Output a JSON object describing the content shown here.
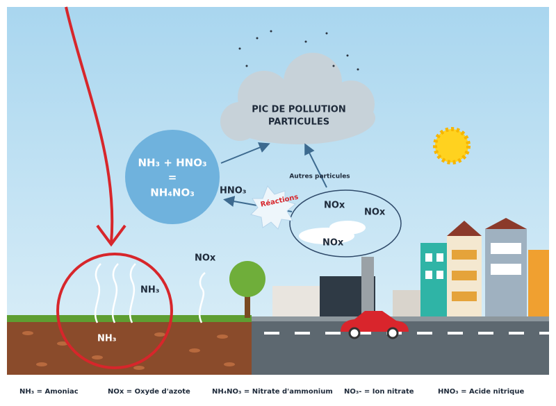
{
  "cloud": {
    "lines": [
      "PIC DE POLLUTION",
      "PARTICULES"
    ]
  },
  "reaction_circle": {
    "lines": [
      "NH₃ + HNO₃",
      "=",
      "NH₄NO₃"
    ]
  },
  "labels": {
    "hno3": "HNO₃",
    "reactions": "Réactions",
    "other_particles": "Autres particules",
    "nox_ellipse": [
      "NOx",
      "NOx",
      "NOx"
    ],
    "nox_ground": "NOx",
    "nh3_air": "NH₃",
    "nh3_soil": "NH₃"
  },
  "legend": [
    "NH₃ = Amoniac",
    "NOx = Oxyde d'azote",
    "NH₄NO₃ = Nitrate d'ammonium",
    "NO₃- = Ion nitrate",
    "HNO₃ = Acide nitrique"
  ]
}
